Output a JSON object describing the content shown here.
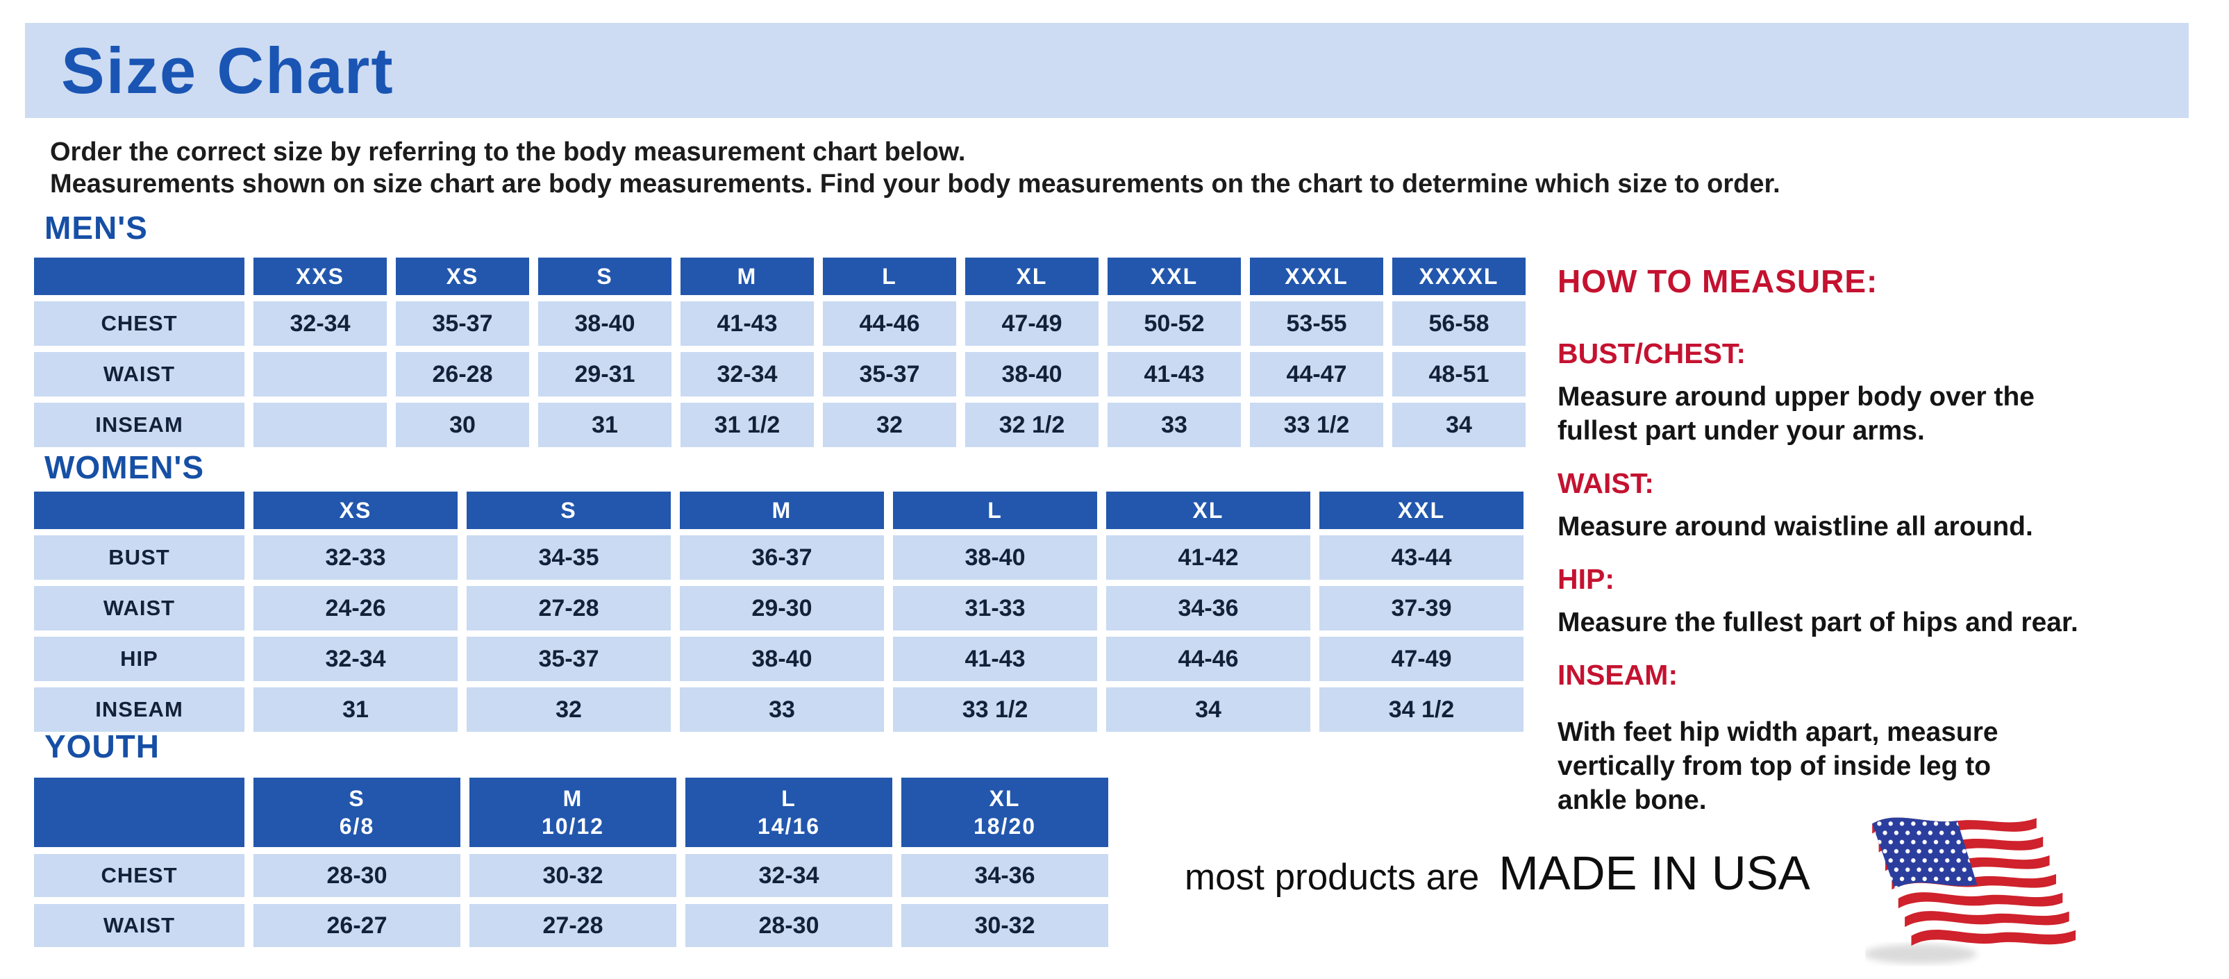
{
  "page": {
    "title": "Size Chart",
    "intro": [
      "Order the correct size by referring to the body measurement chart below.",
      "Measurements shown on size chart are body measurements.  Find your body measurements on the chart to determine which size to order."
    ]
  },
  "tables": {
    "mens": {
      "heading": "MEN'S",
      "columns": [
        "XXS",
        "XS",
        "S",
        "M",
        "L",
        "XL",
        "XXL",
        "XXXL",
        "XXXXL"
      ],
      "rows": [
        {
          "label": "CHEST",
          "values": [
            "32-34",
            "35-37",
            "38-40",
            "41-43",
            "44-46",
            "47-49",
            "50-52",
            "53-55",
            "56-58"
          ]
        },
        {
          "label": "WAIST",
          "values": [
            "",
            "26-28",
            "29-31",
            "32-34",
            "35-37",
            "38-40",
            "41-43",
            "44-47",
            "48-51"
          ]
        },
        {
          "label": "INSEAM",
          "values": [
            "",
            "30",
            "31",
            "31 1/2",
            "32",
            "32 1/2",
            "33",
            "33 1/2",
            "34"
          ]
        }
      ]
    },
    "womens": {
      "heading": "WOMEN'S",
      "columns": [
        "XS",
        "S",
        "M",
        "L",
        "XL",
        "XXL"
      ],
      "rows": [
        {
          "label": "BUST",
          "values": [
            "32-33",
            "34-35",
            "36-37",
            "38-40",
            "41-42",
            "43-44"
          ]
        },
        {
          "label": "WAIST",
          "values": [
            "24-26",
            "27-28",
            "29-30",
            "31-33",
            "34-36",
            "37-39"
          ]
        },
        {
          "label": "HIP",
          "values": [
            "32-34",
            "35-37",
            "38-40",
            "41-43",
            "44-46",
            "47-49"
          ]
        },
        {
          "label": "INSEAM",
          "values": [
            "31",
            "32",
            "33",
            "33 1/2",
            "34",
            "34 1/2"
          ]
        }
      ]
    },
    "youth": {
      "heading": "YOUTH",
      "columns": [
        {
          "size": "S",
          "range": "6/8"
        },
        {
          "size": "M",
          "range": "10/12"
        },
        {
          "size": "L",
          "range": "14/16"
        },
        {
          "size": "XL",
          "range": "18/20"
        }
      ],
      "rows": [
        {
          "label": "CHEST",
          "values": [
            "28-30",
            "30-32",
            "32-34",
            "34-36"
          ]
        },
        {
          "label": "WAIST",
          "values": [
            "26-27",
            "27-28",
            "28-30",
            "30-32"
          ]
        }
      ]
    }
  },
  "how_to_measure": {
    "heading": "HOW TO MEASURE:",
    "sections": [
      {
        "label": "BUST/CHEST:",
        "text": "Measure around upper body over the\nfullest part under your arms."
      },
      {
        "label": "WAIST:",
        "text": "Measure around waistline all around."
      },
      {
        "label": "HIP:",
        "text": "Measure the fullest part of hips and rear."
      },
      {
        "label": "INSEAM:",
        "text": "With feet hip width apart, measure\nvertically from top of inside leg to\nankle bone."
      }
    ]
  },
  "footer": {
    "made_in_prefix": "most products are",
    "made_in_text": "MADE IN USA",
    "flag_icon": "us-flag-icon"
  },
  "colors": {
    "header_blue": "#2257ad",
    "cell_blue": "#c9daf2",
    "banner_blue": "#cddcf3",
    "heading_blue": "#164fa5",
    "title_blue": "#1a55b4",
    "accent_red": "#c41230",
    "cell_text": "#132138",
    "flag_red": "#cf222c",
    "flag_canton_blue": "#2b3e9e"
  }
}
